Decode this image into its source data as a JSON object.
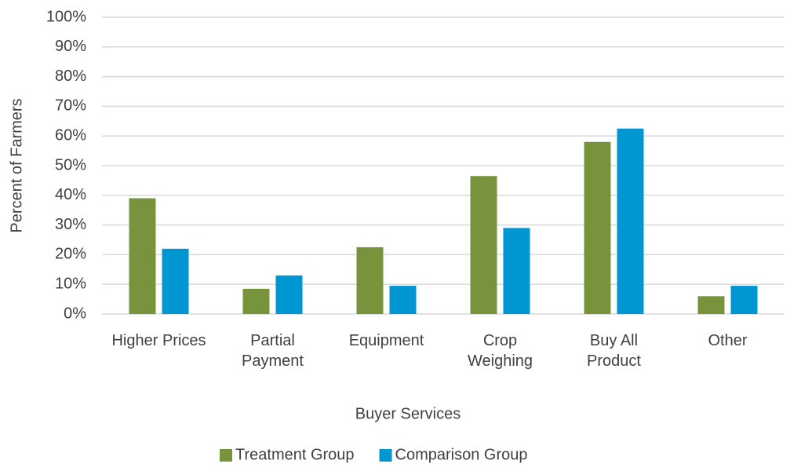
{
  "chart_data": {
    "type": "bar",
    "x_label": "Buyer Services",
    "y_label": "Percent of Farmers",
    "categories": [
      "Higher Prices",
      "Partial Payment",
      "Equipment",
      "Crop Weighing",
      "Buy All Product",
      "Other"
    ],
    "series": [
      {
        "name": "Treatment Group",
        "color": "#77933c",
        "values": [
          39,
          8.5,
          22.5,
          46.5,
          58,
          6
        ]
      },
      {
        "name": "Comparison Group",
        "color": "#0096d2",
        "values": [
          22,
          13,
          9.5,
          29,
          62.5,
          9.5
        ]
      }
    ],
    "ylim": [
      0,
      100
    ],
    "yticks": [
      {
        "value": 0,
        "label": "0%"
      },
      {
        "value": 10,
        "label": "10%"
      },
      {
        "value": 20,
        "label": "20%"
      },
      {
        "value": 30,
        "label": "30%"
      },
      {
        "value": 40,
        "label": "40%"
      },
      {
        "value": 50,
        "label": "50%"
      },
      {
        "value": 60,
        "label": "60%"
      },
      {
        "value": 70,
        "label": "70%"
      },
      {
        "value": 80,
        "label": "80%"
      },
      {
        "value": 90,
        "label": "90%"
      },
      {
        "value": 100,
        "label": "100%"
      }
    ],
    "grid": true,
    "legend": "bottom"
  }
}
